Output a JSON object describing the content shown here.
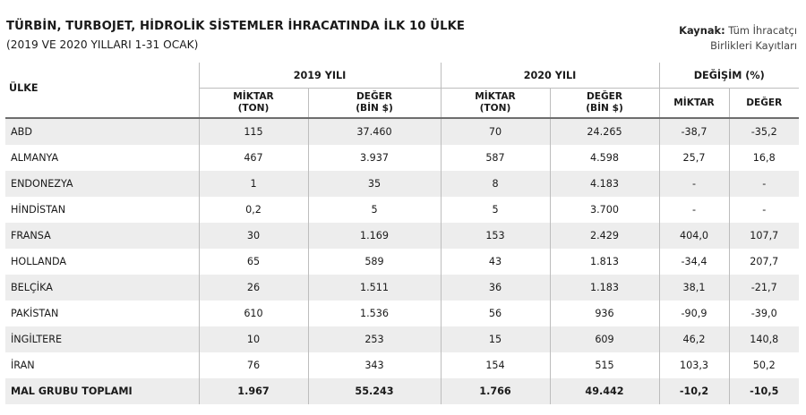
{
  "title": "TÜRBİN, TURBOJET, HİDROLİK SİSTEMLER İHRACATINDA İLK 10 ÜLKE",
  "subtitle": "(2019 VE 2020 YILLARI 1-31 OCAK)",
  "source": {
    "label": "Kaynak:",
    "line1": "Tüm İhracatçı",
    "line2": "Birlikleri Kayıtları"
  },
  "headers": {
    "country": "ÜLKE",
    "y2019": "2019 YILI",
    "y2020": "2020 YILI",
    "change": "DEĞİŞİM (%)",
    "miktar_2019": "MİKTAR\n(TON)",
    "deger_2019": "DEĞER\n(BİN $)",
    "miktar_2020": "MİKTAR\n(TON)",
    "deger_2020": "DEĞER\n(BİN $)",
    "miktar_change": "MİKTAR",
    "deger_change": "DEĞER"
  },
  "rows": [
    {
      "country": "ABD",
      "m2019": "115",
      "d2019": "37.460",
      "m2020": "70",
      "d2020": "24.265",
      "cm": "-38,7",
      "cd": "-35,2"
    },
    {
      "country": "ALMANYA",
      "m2019": "467",
      "d2019": "3.937",
      "m2020": "587",
      "d2020": "4.598",
      "cm": "25,7",
      "cd": "16,8"
    },
    {
      "country": "ENDONEZYA",
      "m2019": "1",
      "d2019": "35",
      "m2020": "8",
      "d2020": "4.183",
      "cm": "-",
      "cd": "-"
    },
    {
      "country": "HİNDİSTAN",
      "m2019": "0,2",
      "d2019": "5",
      "m2020": "5",
      "d2020": "3.700",
      "cm": "-",
      "cd": "-"
    },
    {
      "country": "FRANSA",
      "m2019": "30",
      "d2019": "1.169",
      "m2020": "153",
      "d2020": "2.429",
      "cm": "404,0",
      "cd": "107,7"
    },
    {
      "country": "HOLLANDA",
      "m2019": "65",
      "d2019": "589",
      "m2020": "43",
      "d2020": "1.813",
      "cm": "-34,4",
      "cd": "207,7"
    },
    {
      "country": "BELÇİKA",
      "m2019": "26",
      "d2019": "1.511",
      "m2020": "36",
      "d2020": "1.183",
      "cm": "38,1",
      "cd": "-21,7"
    },
    {
      "country": "PAKİSTAN",
      "m2019": "610",
      "d2019": "1.536",
      "m2020": "56",
      "d2020": "936",
      "cm": "-90,9",
      "cd": "-39,0"
    },
    {
      "country": "İNGİLTERE",
      "m2019": "10",
      "d2019": "253",
      "m2020": "15",
      "d2020": "609",
      "cm": "46,2",
      "cd": "140,8"
    },
    {
      "country": "İRAN",
      "m2019": "76",
      "d2019": "343",
      "m2020": "154",
      "d2020": "515",
      "cm": "103,3",
      "cd": "50,2"
    },
    {
      "country": "MAL GRUBU TOPLAMI",
      "m2019": "1.967",
      "d2019": "55.243",
      "m2020": "1.766",
      "d2020": "49.442",
      "cm": "-10,2",
      "cd": "-10,5"
    }
  ]
}
